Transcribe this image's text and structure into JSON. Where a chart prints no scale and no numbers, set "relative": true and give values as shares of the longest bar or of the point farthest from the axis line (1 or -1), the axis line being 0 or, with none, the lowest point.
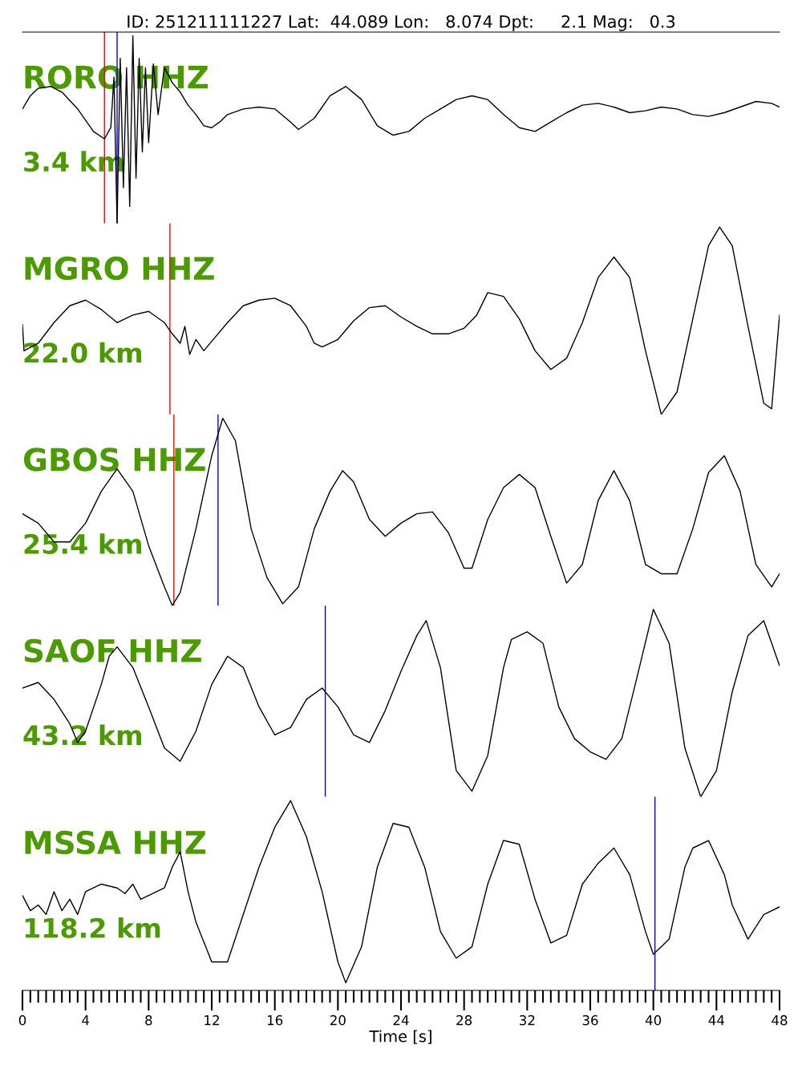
{
  "chart_data": [
    {
      "type": "line",
      "title": "ID: 251211111227 Lat:  44.089 Lon:   8.074 Dpt:     2.1 Mag:   0.3",
      "subtitle": "RORO HHZ",
      "annotations": [
        "3.4 km"
      ],
      "relative": true,
      "xlim": [
        0,
        48
      ],
      "tick_labels": false,
      "series": [
        {
          "color": "#000000",
          "x": [
            0,
            0.5,
            1.0,
            1.8,
            2.5,
            3.5,
            4.5,
            5.2,
            5.6,
            5.8,
            6.0,
            6.2,
            6.4,
            6.6,
            6.8,
            7.0,
            7.2,
            7.4,
            7.6,
            7.8,
            8.0,
            8.3,
            8.6,
            9.0,
            9.5,
            10.0,
            10.5,
            11.0,
            11.5,
            12.0,
            12.5,
            13.0,
            14.0,
            15.0,
            16.0,
            17.0,
            17.5,
            18.5,
            19.5,
            20.5,
            21.5,
            22.5,
            23.5,
            24.5,
            25.5,
            26.5,
            27.5,
            28.5,
            29.5,
            30.5,
            31.5,
            32.5,
            33.5,
            34.5,
            35.5,
            36.5,
            37.5,
            38.5,
            39.5,
            40.5,
            41.5,
            42.5,
            43.5,
            44.5,
            45.5,
            46.5,
            47.5,
            48
          ],
          "values": [
            0.61,
            0.68,
            0.72,
            0.73,
            0.7,
            0.61,
            0.49,
            0.45,
            0.51,
            0.78,
            0.0,
            0.88,
            0.19,
            0.83,
            0.09,
            1.0,
            0.24,
            0.88,
            0.38,
            0.83,
            0.43,
            0.85,
            0.58,
            0.83,
            0.75,
            0.7,
            0.63,
            0.58,
            0.52,
            0.51,
            0.54,
            0.58,
            0.61,
            0.62,
            0.61,
            0.54,
            0.5,
            0.56,
            0.68,
            0.73,
            0.66,
            0.52,
            0.47,
            0.49,
            0.56,
            0.61,
            0.66,
            0.68,
            0.66,
            0.58,
            0.51,
            0.49,
            0.54,
            0.59,
            0.63,
            0.64,
            0.62,
            0.59,
            0.6,
            0.62,
            0.61,
            0.58,
            0.57,
            0.59,
            0.62,
            0.65,
            0.64,
            0.62
          ]
        }
      ],
      "ref_lines": [
        {
          "axis": "x",
          "value": 5.2,
          "color": "#ff0000"
        },
        {
          "axis": "x",
          "value": 6.0,
          "color": "#0000ff"
        }
      ]
    },
    {
      "type": "line",
      "subtitle": "MGRO HHZ",
      "annotations": [
        "22.0 km"
      ],
      "relative": true,
      "xlim": [
        0,
        48
      ],
      "tick_labels": false,
      "series": [
        {
          "color": "#000000",
          "x": [
            0,
            0.1,
            1,
            2,
            3,
            4,
            5,
            6,
            7,
            8,
            9,
            9.5,
            10,
            10.3,
            10.6,
            11,
            11.5,
            12,
            13,
            14,
            15,
            16,
            17,
            18,
            18.5,
            19,
            20,
            21,
            22,
            23,
            24,
            25,
            26,
            27,
            28,
            28.8,
            29.5,
            30.5,
            31.5,
            32.5,
            33.5,
            34.5,
            35.5,
            36.5,
            37.5,
            38.5,
            39.5,
            40.5,
            41.5,
            42.5,
            43.5,
            44.2,
            45,
            46,
            47,
            47.5,
            48
          ],
          "values": [
            0.48,
            0.34,
            0.38,
            0.49,
            0.58,
            0.61,
            0.56,
            0.49,
            0.53,
            0.55,
            0.49,
            0.43,
            0.38,
            0.47,
            0.32,
            0.4,
            0.34,
            0.39,
            0.49,
            0.58,
            0.61,
            0.62,
            0.58,
            0.47,
            0.38,
            0.36,
            0.4,
            0.5,
            0.57,
            0.58,
            0.52,
            0.47,
            0.43,
            0.43,
            0.46,
            0.53,
            0.65,
            0.63,
            0.51,
            0.34,
            0.24,
            0.3,
            0.49,
            0.73,
            0.84,
            0.73,
            0.34,
            0.0,
            0.12,
            0.51,
            0.9,
            1.0,
            0.9,
            0.47,
            0.06,
            0.03,
            0.53
          ]
        }
      ],
      "ref_lines": [
        {
          "axis": "x",
          "value": 9.35,
          "color": "#ff0000"
        }
      ]
    },
    {
      "type": "line",
      "subtitle": "GBOS HHZ",
      "annotations": [
        "25.4 km"
      ],
      "relative": true,
      "xlim": [
        0,
        48
      ],
      "tick_labels": false,
      "series": [
        {
          "color": "#000000",
          "x": [
            0,
            1,
            2,
            3,
            4,
            5,
            6,
            7,
            8,
            9,
            9.5,
            10,
            11,
            12,
            12.7,
            13.5,
            14.5,
            15.5,
            16.5,
            17.5,
            18.5,
            19.5,
            20.3,
            21,
            22,
            23,
            24,
            25,
            26,
            27,
            28,
            28.5,
            29.5,
            30.5,
            31.5,
            32.5,
            33.5,
            34.5,
            35.5,
            36.5,
            37.5,
            38.5,
            39.5,
            40.5,
            41.5,
            42.5,
            43.5,
            44.5,
            45.5,
            46.5,
            47.5,
            48
          ],
          "values": [
            0.49,
            0.44,
            0.34,
            0.34,
            0.44,
            0.61,
            0.73,
            0.61,
            0.32,
            0.1,
            0.0,
            0.07,
            0.41,
            0.8,
            1.0,
            0.88,
            0.41,
            0.15,
            0.01,
            0.1,
            0.41,
            0.61,
            0.72,
            0.66,
            0.46,
            0.37,
            0.44,
            0.49,
            0.5,
            0.39,
            0.2,
            0.2,
            0.46,
            0.63,
            0.7,
            0.63,
            0.37,
            0.12,
            0.22,
            0.56,
            0.72,
            0.56,
            0.22,
            0.17,
            0.17,
            0.41,
            0.71,
            0.8,
            0.61,
            0.22,
            0.1,
            0.17
          ]
        }
      ],
      "ref_lines": [
        {
          "axis": "x",
          "value": 9.6,
          "color": "#ff0000"
        },
        {
          "axis": "x",
          "value": 12.4,
          "color": "#0000ff"
        }
      ]
    },
    {
      "type": "line",
      "subtitle": "SAOF HHZ",
      "annotations": [
        "43.2 km"
      ],
      "relative": true,
      "xlim": [
        0,
        48
      ],
      "tick_labels": false,
      "series": [
        {
          "color": "#000000",
          "x": [
            0,
            1,
            2,
            3,
            3.5,
            4,
            5,
            5.5,
            6,
            7,
            8,
            9,
            10,
            11,
            12,
            13,
            14,
            15,
            16,
            17,
            18,
            19,
            20,
            21,
            22,
            23,
            24,
            25,
            25.6,
            26.5,
            27.5,
            28.5,
            29.5,
            30.5,
            31,
            32,
            33,
            34,
            35,
            36,
            37,
            38,
            39,
            40,
            41,
            42,
            43,
            44,
            45,
            46,
            47,
            48
          ],
          "values": [
            0.58,
            0.61,
            0.52,
            0.39,
            0.29,
            0.35,
            0.6,
            0.75,
            0.8,
            0.69,
            0.48,
            0.26,
            0.19,
            0.35,
            0.6,
            0.75,
            0.69,
            0.48,
            0.33,
            0.37,
            0.52,
            0.58,
            0.48,
            0.33,
            0.29,
            0.46,
            0.67,
            0.86,
            0.94,
            0.69,
            0.14,
            0.03,
            0.22,
            0.69,
            0.84,
            0.88,
            0.82,
            0.48,
            0.31,
            0.24,
            0.2,
            0.31,
            0.65,
            1.0,
            0.82,
            0.26,
            0.0,
            0.14,
            0.56,
            0.86,
            0.94,
            0.7
          ]
        }
      ],
      "ref_lines": [
        {
          "axis": "x",
          "value": 19.2,
          "color": "#0000ff"
        }
      ]
    },
    {
      "type": "line",
      "subtitle": "MSSA HHZ",
      "annotations": [
        "118.2 km"
      ],
      "relative": true,
      "xlabel": "Time [s]",
      "xlim": [
        0,
        48
      ],
      "tick_labels": "x",
      "xticks": [
        0,
        {
          "value": 0.5,
          "label": null
        },
        {
          "value": 1,
          "label": null
        },
        {
          "value": 1.5,
          "label": null
        },
        {
          "value": 2,
          "label": null
        },
        {
          "value": 2.5,
          "label": null
        },
        {
          "value": 3,
          "label": null
        },
        {
          "value": 3.5,
          "label": null
        },
        4,
        {
          "value": 4.5,
          "label": null
        },
        {
          "value": 5,
          "label": null
        },
        {
          "value": 5.5,
          "label": null
        },
        {
          "value": 6,
          "label": null
        },
        {
          "value": 6.5,
          "label": null
        },
        {
          "value": 7,
          "label": null
        },
        {
          "value": 7.5,
          "label": null
        },
        8,
        {
          "value": 8.5,
          "label": null
        },
        {
          "value": 9,
          "label": null
        },
        {
          "value": 9.5,
          "label": null
        },
        {
          "value": 10,
          "label": null
        },
        {
          "value": 10.5,
          "label": null
        },
        {
          "value": 11,
          "label": null
        },
        {
          "value": 11.5,
          "label": null
        },
        12,
        {
          "value": 12.5,
          "label": null
        },
        {
          "value": 13,
          "label": null
        },
        {
          "value": 13.5,
          "label": null
        },
        {
          "value": 14,
          "label": null
        },
        {
          "value": 14.5,
          "label": null
        },
        {
          "value": 15,
          "label": null
        },
        {
          "value": 15.5,
          "label": null
        },
        16,
        {
          "value": 16.5,
          "label": null
        },
        {
          "value": 17,
          "label": null
        },
        {
          "value": 17.5,
          "label": null
        },
        {
          "value": 18,
          "label": null
        },
        {
          "value": 18.5,
          "label": null
        },
        {
          "value": 19,
          "label": null
        },
        {
          "value": 19.5,
          "label": null
        },
        20,
        {
          "value": 20.5,
          "label": null
        },
        {
          "value": 21,
          "label": null
        },
        {
          "value": 21.5,
          "label": null
        },
        {
          "value": 22,
          "label": null
        },
        {
          "value": 22.5,
          "label": null
        },
        {
          "value": 23,
          "label": null
        },
        {
          "value": 23.5,
          "label": null
        },
        24,
        {
          "value": 24.5,
          "label": null
        },
        {
          "value": 25,
          "label": null
        },
        {
          "value": 25.5,
          "label": null
        },
        {
          "value": 26,
          "label": null
        },
        {
          "value": 26.5,
          "label": null
        },
        {
          "value": 27,
          "label": null
        },
        {
          "value": 27.5,
          "label": null
        },
        28,
        {
          "value": 28.5,
          "label": null
        },
        {
          "value": 29,
          "label": null
        },
        {
          "value": 29.5,
          "label": null
        },
        {
          "value": 30,
          "label": null
        },
        {
          "value": 30.5,
          "label": null
        },
        {
          "value": 31,
          "label": null
        },
        {
          "value": 31.5,
          "label": null
        },
        32,
        {
          "value": 32.5,
          "label": null
        },
        {
          "value": 33,
          "label": null
        },
        {
          "value": 33.5,
          "label": null
        },
        {
          "value": 34,
          "label": null
        },
        {
          "value": 34.5,
          "label": null
        },
        {
          "value": 35,
          "label": null
        },
        {
          "value": 35.5,
          "label": null
        },
        36,
        {
          "value": 36.5,
          "label": null
        },
        {
          "value": 37,
          "label": null
        },
        {
          "value": 37.5,
          "label": null
        },
        {
          "value": 38,
          "label": null
        },
        {
          "value": 38.5,
          "label": null
        },
        {
          "value": 39,
          "label": null
        },
        {
          "value": 39.5,
          "label": null
        },
        40,
        {
          "value": 40.5,
          "label": null
        },
        {
          "value": 41,
          "label": null
        },
        {
          "value": 41.5,
          "label": null
        },
        {
          "value": 42,
          "label": null
        },
        {
          "value": 42.5,
          "label": null
        },
        {
          "value": 43,
          "label": null
        },
        {
          "value": 43.5,
          "label": null
        },
        44,
        {
          "value": 44.5,
          "label": null
        },
        {
          "value": 45,
          "label": null
        },
        {
          "value": 45.5,
          "label": null
        },
        {
          "value": 46,
          "label": null
        },
        {
          "value": 46.5,
          "label": null
        },
        {
          "value": 47,
          "label": null
        },
        {
          "value": 47.5,
          "label": null
        },
        48
      ],
      "series": [
        {
          "color": "#000000",
          "x": [
            0,
            0.5,
            1,
            1.5,
            2,
            2.5,
            3,
            3.5,
            4,
            5,
            6,
            6.5,
            7,
            7.5,
            8,
            9,
            9.5,
            10,
            10.5,
            11,
            12,
            13,
            14,
            15,
            16,
            17,
            18,
            19,
            20,
            20.5,
            21.5,
            22.5,
            23.5,
            24.5,
            25.5,
            26.5,
            27.5,
            28.5,
            29.5,
            30.5,
            31.5,
            32.5,
            33.5,
            34.5,
            35.5,
            36.5,
            37.5,
            38.5,
            39.5,
            40,
            41,
            42,
            42.5,
            43.5,
            44.5,
            45,
            46,
            47,
            48
          ],
          "values": [
            0.5,
            0.42,
            0.45,
            0.4,
            0.52,
            0.42,
            0.48,
            0.4,
            0.52,
            0.56,
            0.54,
            0.51,
            0.56,
            0.48,
            0.5,
            0.54,
            0.65,
            0.73,
            0.52,
            0.36,
            0.15,
            0.15,
            0.4,
            0.65,
            0.86,
            1.0,
            0.81,
            0.52,
            0.15,
            0.04,
            0.23,
            0.65,
            0.88,
            0.86,
            0.65,
            0.31,
            0.17,
            0.23,
            0.56,
            0.79,
            0.77,
            0.48,
            0.25,
            0.29,
            0.56,
            0.67,
            0.75,
            0.61,
            0.31,
            0.19,
            0.27,
            0.65,
            0.75,
            0.79,
            0.61,
            0.45,
            0.27,
            0.4,
            0.44
          ]
        }
      ],
      "ref_lines": [
        {
          "axis": "x",
          "value": 40.1,
          "color": "#0000ff"
        }
      ]
    }
  ]
}
